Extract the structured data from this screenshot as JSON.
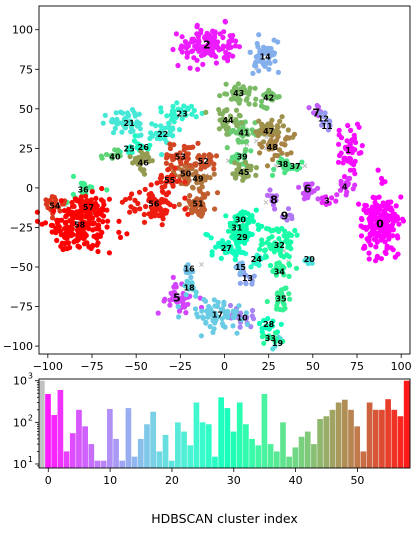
{
  "chart_data": [
    {
      "type": "scatter",
      "xlim": [
        -105,
        105
      ],
      "ylim": [
        -105,
        115
      ],
      "x_ticks": [
        -100,
        -75,
        -50,
        -25,
        0,
        25,
        50,
        75,
        100
      ],
      "y_ticks": [
        -100,
        -75,
        -50,
        -25,
        0,
        25,
        50,
        75,
        100
      ],
      "noise_color": "#bbbbbb",
      "clusters": [
        {
          "id": 0,
          "x": 88,
          "y": -23,
          "sx": 5,
          "sy": 9,
          "n": 180,
          "big": true
        },
        {
          "id": 1,
          "x": 70,
          "y": 24,
          "sx": 3,
          "sy": 7,
          "n": 50,
          "big": false
        },
        {
          "id": 2,
          "x": -10,
          "y": 90,
          "sx": 9,
          "sy": 5,
          "n": 130,
          "big": true
        },
        {
          "id": 3,
          "x": 58,
          "y": -8,
          "sx": 2,
          "sy": 2,
          "n": 10,
          "big": false
        },
        {
          "id": 4,
          "x": 68,
          "y": 1,
          "sx": 3,
          "sy": 3,
          "n": 18,
          "big": false
        },
        {
          "id": 5,
          "x": -27,
          "y": -70,
          "sx": 5,
          "sy": 5,
          "n": 45,
          "big": true
        },
        {
          "id": 6,
          "x": 47,
          "y": -1,
          "sx": 3,
          "sy": 3,
          "n": 22,
          "big": true
        },
        {
          "id": 7,
          "x": 52,
          "y": 47,
          "sx": 2,
          "sy": 2,
          "n": 8,
          "big": true
        },
        {
          "id": 8,
          "x": 28,
          "y": -8,
          "sx": 2,
          "sy": 3,
          "n": 10,
          "big": true
        },
        {
          "id": 9,
          "x": 34,
          "y": -18,
          "sx": 2,
          "sy": 2,
          "n": 6,
          "big": true
        },
        {
          "id": 10,
          "x": 10,
          "y": -82,
          "sx": 5,
          "sy": 3,
          "n": 25,
          "big": false
        },
        {
          "id": 11,
          "x": 58,
          "y": 39,
          "sx": 2,
          "sy": 2,
          "n": 6,
          "big": false
        },
        {
          "id": 12,
          "x": 56,
          "y": 44,
          "sx": 2,
          "sy": 2,
          "n": 6,
          "big": false
        },
        {
          "id": 13,
          "x": 13,
          "y": -57,
          "sx": 3,
          "sy": 3,
          "n": 14,
          "big": false
        },
        {
          "id": 14,
          "x": 23,
          "y": 83,
          "sx": 4,
          "sy": 5,
          "n": 50,
          "big": false
        },
        {
          "id": 15,
          "x": 9,
          "y": -50,
          "sx": 2,
          "sy": 2,
          "n": 8,
          "big": false
        },
        {
          "id": 16,
          "x": -20,
          "y": -51,
          "sx": 2,
          "sy": 3,
          "n": 10,
          "big": false
        },
        {
          "id": 17,
          "x": -4,
          "y": -80,
          "sx": 8,
          "sy": 4,
          "n": 70,
          "big": false
        },
        {
          "id": 18,
          "x": -20,
          "y": -63,
          "sx": 3,
          "sy": 3,
          "n": 18,
          "big": false
        },
        {
          "id": 19,
          "x": 30,
          "y": -98,
          "sx": 2,
          "sy": 2,
          "n": 6,
          "big": false
        },
        {
          "id": 20,
          "x": 48,
          "y": -45,
          "sx": 2,
          "sy": 2,
          "n": 8,
          "big": false
        },
        {
          "id": 21,
          "x": -54,
          "y": 41,
          "sx": 6,
          "sy": 4,
          "n": 45,
          "big": false
        },
        {
          "id": 22,
          "x": -35,
          "y": 34,
          "sx": 4,
          "sy": 4,
          "n": 30,
          "big": false
        },
        {
          "id": 23,
          "x": -24,
          "y": 47,
          "sx": 5,
          "sy": 3,
          "n": 30,
          "big": false
        },
        {
          "id": 24,
          "x": 18,
          "y": -45,
          "sx": 3,
          "sy": 3,
          "n": 14,
          "big": false
        },
        {
          "id": 25,
          "x": -54,
          "y": 25,
          "sx": 2,
          "sy": 2,
          "n": 8,
          "big": false
        },
        {
          "id": 26,
          "x": -46,
          "y": 26,
          "sx": 3,
          "sy": 2,
          "n": 12,
          "big": false
        },
        {
          "id": 27,
          "x": 1,
          "y": -38,
          "sx": 5,
          "sy": 4,
          "n": 40,
          "big": false
        },
        {
          "id": 28,
          "x": 25,
          "y": -86,
          "sx": 3,
          "sy": 3,
          "n": 14,
          "big": false
        },
        {
          "id": 29,
          "x": 10,
          "y": -31,
          "sx": 3,
          "sy": 3,
          "n": 22,
          "big": false
        },
        {
          "id": 30,
          "x": 9,
          "y": -20,
          "sx": 6,
          "sy": 3,
          "n": 35,
          "big": false
        },
        {
          "id": 31,
          "x": 7,
          "y": -25,
          "sx": 3,
          "sy": 3,
          "n": 18,
          "big": false
        },
        {
          "id": 32,
          "x": 31,
          "y": -36,
          "sx": 6,
          "sy": 6,
          "n": 60,
          "big": false
        },
        {
          "id": 33,
          "x": 26,
          "y": -95,
          "sx": 3,
          "sy": 2,
          "n": 12,
          "big": false
        },
        {
          "id": 34,
          "x": 31,
          "y": -53,
          "sx": 3,
          "sy": 3,
          "n": 18,
          "big": false
        },
        {
          "id": 35,
          "x": 32,
          "y": -70,
          "sx": 3,
          "sy": 5,
          "n": 22,
          "big": false
        },
        {
          "id": 36,
          "x": -80,
          "y": -1,
          "sx": 4,
          "sy": 4,
          "n": 20,
          "big": false
        },
        {
          "id": 37,
          "x": 40,
          "y": 14,
          "sx": 3,
          "sy": 2,
          "n": 12,
          "big": false
        },
        {
          "id": 38,
          "x": 33,
          "y": 15,
          "sx": 3,
          "sy": 3,
          "n": 15,
          "big": false
        },
        {
          "id": 39,
          "x": 10,
          "y": 20,
          "sx": 3,
          "sy": 3,
          "n": 18,
          "big": false
        },
        {
          "id": 40,
          "x": -62,
          "y": 20,
          "sx": 3,
          "sy": 2,
          "n": 12,
          "big": false
        },
        {
          "id": 41,
          "x": 11,
          "y": 35,
          "sx": 5,
          "sy": 4,
          "n": 40,
          "big": false
        },
        {
          "id": 42,
          "x": 25,
          "y": 57,
          "sx": 3,
          "sy": 3,
          "n": 20,
          "big": false
        },
        {
          "id": 43,
          "x": 8,
          "y": 60,
          "sx": 5,
          "sy": 3,
          "n": 35,
          "big": false
        },
        {
          "id": 44,
          "x": 2,
          "y": 43,
          "sx": 4,
          "sy": 4,
          "n": 30,
          "big": false
        },
        {
          "id": 45,
          "x": 11,
          "y": 10,
          "sx": 4,
          "sy": 3,
          "n": 25,
          "big": false
        },
        {
          "id": 46,
          "x": -46,
          "y": 16,
          "sx": 4,
          "sy": 4,
          "n": 30,
          "big": false
        },
        {
          "id": 47,
          "x": 25,
          "y": 36,
          "sx": 5,
          "sy": 4,
          "n": 40,
          "big": false
        },
        {
          "id": 48,
          "x": 27,
          "y": 26,
          "sx": 5,
          "sy": 4,
          "n": 35,
          "big": false
        },
        {
          "id": 49,
          "x": -15,
          "y": 6,
          "sx": 4,
          "sy": 3,
          "n": 25,
          "big": false
        },
        {
          "id": 50,
          "x": -22,
          "y": 9,
          "sx": 4,
          "sy": 3,
          "n": 25,
          "big": false
        },
        {
          "id": 51,
          "x": -15,
          "y": -10,
          "sx": 5,
          "sy": 4,
          "n": 40,
          "big": false
        },
        {
          "id": 52,
          "x": -12,
          "y": 17,
          "sx": 4,
          "sy": 4,
          "n": 30,
          "big": false
        },
        {
          "id": 53,
          "x": -25,
          "y": 20,
          "sx": 4,
          "sy": 4,
          "n": 30,
          "big": false
        },
        {
          "id": 54,
          "x": -96,
          "y": -11,
          "sx": 3,
          "sy": 3,
          "n": 25,
          "big": false
        },
        {
          "id": 55,
          "x": -31,
          "y": 5,
          "sx": 3,
          "sy": 3,
          "n": 20,
          "big": false
        },
        {
          "id": 56,
          "x": -40,
          "y": -10,
          "sx": 7,
          "sy": 5,
          "n": 70,
          "big": false
        },
        {
          "id": 57,
          "x": -77,
          "y": -12,
          "sx": 5,
          "sy": 4,
          "n": 40,
          "big": false
        },
        {
          "id": 58,
          "x": -82,
          "y": -23,
          "sx": 9,
          "sy": 9,
          "n": 200,
          "big": false
        }
      ]
    },
    {
      "type": "bar",
      "xlabel": "HDBSCAN cluster index",
      "ylabel": "",
      "yscale": "log",
      "ylim": [
        8,
        1100
      ],
      "xlim": [
        -1.5,
        58.5
      ],
      "x_ticks": [
        0,
        10,
        20,
        30,
        40,
        50
      ],
      "y_ticks": [
        {
          "value": 10,
          "base": "10",
          "exp": "1"
        },
        {
          "value": 100,
          "base": "10",
          "exp": "2"
        },
        {
          "value": 1000,
          "base": "10",
          "exp": "3"
        }
      ],
      "categories": [
        -1,
        0,
        1,
        2,
        3,
        4,
        5,
        6,
        7,
        8,
        9,
        10,
        11,
        12,
        13,
        14,
        15,
        16,
        17,
        18,
        19,
        20,
        21,
        22,
        23,
        24,
        25,
        26,
        27,
        28,
        29,
        30,
        31,
        32,
        33,
        34,
        35,
        36,
        37,
        38,
        39,
        40,
        41,
        42,
        43,
        44,
        45,
        46,
        47,
        48,
        49,
        50,
        51,
        52,
        53,
        54,
        55,
        56,
        57,
        58
      ],
      "values": [
        1000,
        480,
        150,
        600,
        20,
        55,
        200,
        80,
        30,
        12,
        12,
        210,
        40,
        12,
        220,
        15,
        40,
        90,
        180,
        20,
        50,
        12,
        100,
        60,
        28,
        300,
        100,
        90,
        15,
        400,
        220,
        60,
        300,
        90,
        40,
        28,
        480,
        30,
        20,
        100,
        15,
        25,
        45,
        60,
        30,
        120,
        140,
        200,
        300,
        350,
        200,
        80,
        20,
        300,
        200,
        200,
        360,
        200,
        140,
        1000
      ]
    }
  ]
}
